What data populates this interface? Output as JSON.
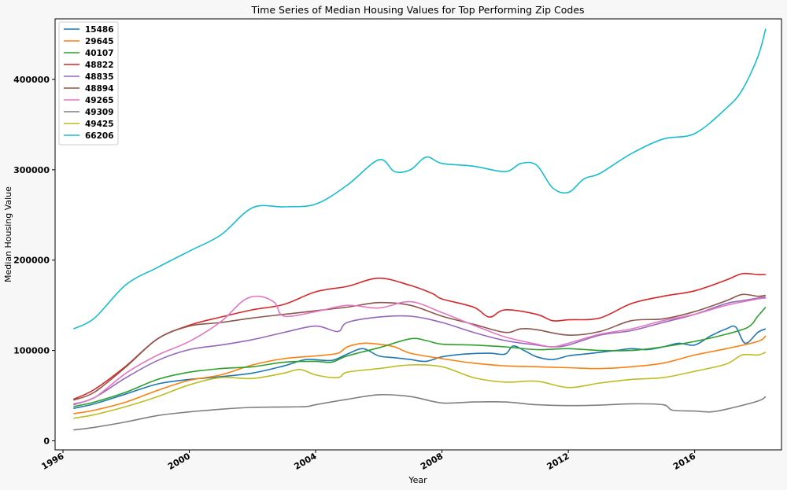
{
  "chart_data": {
    "type": "line",
    "title": "Time Series of Median Housing Values for Top Performing Zip Codes",
    "xlabel": "Year",
    "ylabel": "Median Housing Value",
    "xlim": [
      1995.75,
      2018.75
    ],
    "ylim": [
      -10000,
      467000
    ],
    "x_ticks": [
      1996,
      2000,
      2004,
      2008,
      2012,
      2016
    ],
    "y_ticks": [
      0,
      100000,
      200000,
      300000,
      400000
    ],
    "legend": "top-left",
    "grid": false,
    "series": [
      {
        "name": "15486",
        "color": "#1f77b4",
        "points": [
          [
            1996.33,
            36000
          ],
          [
            1997,
            41000
          ],
          [
            1998,
            52000
          ],
          [
            1999,
            63000
          ],
          [
            2000,
            68000
          ],
          [
            2001,
            71000
          ],
          [
            2002,
            75000
          ],
          [
            2003,
            83000
          ],
          [
            2003.7,
            90000
          ],
          [
            2004.5,
            89000
          ],
          [
            2005,
            96000
          ],
          [
            2005.5,
            102000
          ],
          [
            2006,
            94000
          ],
          [
            2006.5,
            92000
          ],
          [
            2007,
            90000
          ],
          [
            2007.5,
            88000
          ],
          [
            2008,
            93000
          ],
          [
            2008.7,
            96000
          ],
          [
            2009.5,
            97000
          ],
          [
            2010,
            96000
          ],
          [
            2010.25,
            105000
          ],
          [
            2010.6,
            100000
          ],
          [
            2011,
            93000
          ],
          [
            2011.5,
            90000
          ],
          [
            2012,
            94000
          ],
          [
            2012.5,
            96000
          ],
          [
            2013,
            98000
          ],
          [
            2013.5,
            100000
          ],
          [
            2014,
            102000
          ],
          [
            2014.5,
            101000
          ],
          [
            2015,
            104000
          ],
          [
            2015.5,
            108000
          ],
          [
            2016,
            106000
          ],
          [
            2016.5,
            116000
          ],
          [
            2017,
            124000
          ],
          [
            2017.3,
            126000
          ],
          [
            2017.6,
            108000
          ],
          [
            2018,
            120000
          ],
          [
            2018.25,
            124000
          ]
        ]
      },
      {
        "name": "29645",
        "color": "#ff7f0e",
        "points": [
          [
            1996.33,
            30000
          ],
          [
            1997,
            34000
          ],
          [
            1998,
            43000
          ],
          [
            1999,
            56000
          ],
          [
            2000,
            67000
          ],
          [
            2001,
            73000
          ],
          [
            2002,
            84000
          ],
          [
            2003,
            91000
          ],
          [
            2004,
            94000
          ],
          [
            2004.7,
            97000
          ],
          [
            2005,
            104000
          ],
          [
            2005.5,
            108000
          ],
          [
            2006,
            107000
          ],
          [
            2006.5,
            104000
          ],
          [
            2007,
            97000
          ],
          [
            2008,
            91000
          ],
          [
            2009,
            86000
          ],
          [
            2010,
            83000
          ],
          [
            2011,
            82000
          ],
          [
            2012,
            81000
          ],
          [
            2013,
            80000
          ],
          [
            2014,
            82000
          ],
          [
            2015,
            86000
          ],
          [
            2016,
            95000
          ],
          [
            2017,
            102000
          ],
          [
            2018,
            110000
          ],
          [
            2018.25,
            116000
          ]
        ]
      },
      {
        "name": "40107",
        "color": "#2ca02c",
        "points": [
          [
            1996.33,
            38000
          ],
          [
            1997,
            43000
          ],
          [
            1998,
            54000
          ],
          [
            1999,
            68000
          ],
          [
            2000,
            76000
          ],
          [
            2001,
            80000
          ],
          [
            2002,
            82000
          ],
          [
            2003,
            87000
          ],
          [
            2004,
            88000
          ],
          [
            2004.5,
            87000
          ],
          [
            2005,
            94000
          ],
          [
            2006,
            103000
          ],
          [
            2007,
            113000
          ],
          [
            2007.5,
            111000
          ],
          [
            2008,
            107000
          ],
          [
            2009,
            106000
          ],
          [
            2010,
            104000
          ],
          [
            2011,
            101000
          ],
          [
            2012,
            102000
          ],
          [
            2013,
            100000
          ],
          [
            2014,
            100000
          ],
          [
            2015,
            104000
          ],
          [
            2016,
            110000
          ],
          [
            2017,
            118000
          ],
          [
            2017.7,
            126000
          ],
          [
            2018,
            138000
          ],
          [
            2018.25,
            148000
          ]
        ]
      },
      {
        "name": "48822",
        "color": "#d62728",
        "points": [
          [
            1996.33,
            46000
          ],
          [
            1997,
            57000
          ],
          [
            1998,
            83000
          ],
          [
            1999,
            113000
          ],
          [
            2000,
            128000
          ],
          [
            2001,
            137000
          ],
          [
            2002,
            145000
          ],
          [
            2003,
            151000
          ],
          [
            2004,
            165000
          ],
          [
            2005,
            171000
          ],
          [
            2006,
            180000
          ],
          [
            2007,
            172000
          ],
          [
            2007.7,
            163000
          ],
          [
            2008,
            157000
          ],
          [
            2009,
            148000
          ],
          [
            2009.5,
            137000
          ],
          [
            2010,
            145000
          ],
          [
            2011,
            140000
          ],
          [
            2011.5,
            133000
          ],
          [
            2012,
            134000
          ],
          [
            2013,
            136000
          ],
          [
            2014,
            152000
          ],
          [
            2015,
            160000
          ],
          [
            2016,
            166000
          ],
          [
            2017,
            178000
          ],
          [
            2017.5,
            185000
          ],
          [
            2018,
            184000
          ],
          [
            2018.25,
            184000
          ]
        ]
      },
      {
        "name": "48835",
        "color": "#9467bd",
        "points": [
          [
            1996.33,
            40000
          ],
          [
            1997,
            48000
          ],
          [
            1998,
            70000
          ],
          [
            1999,
            89000
          ],
          [
            2000,
            101000
          ],
          [
            2001,
            106000
          ],
          [
            2002,
            112000
          ],
          [
            2003,
            120000
          ],
          [
            2004,
            127000
          ],
          [
            2004.7,
            121000
          ],
          [
            2005,
            131000
          ],
          [
            2006,
            137000
          ],
          [
            2007,
            138000
          ],
          [
            2008,
            131000
          ],
          [
            2009,
            120000
          ],
          [
            2010,
            111000
          ],
          [
            2011,
            106000
          ],
          [
            2011.5,
            104000
          ],
          [
            2012,
            106000
          ],
          [
            2013,
            117000
          ],
          [
            2014,
            122000
          ],
          [
            2015,
            131000
          ],
          [
            2016,
            140000
          ],
          [
            2017,
            152000
          ],
          [
            2017.5,
            155000
          ],
          [
            2018,
            158000
          ],
          [
            2018.25,
            159000
          ]
        ]
      },
      {
        "name": "48894",
        "color": "#8c564b",
        "points": [
          [
            1996.33,
            45000
          ],
          [
            1997,
            54000
          ],
          [
            1998,
            82000
          ],
          [
            1999,
            113000
          ],
          [
            2000,
            127000
          ],
          [
            2001,
            131000
          ],
          [
            2002,
            136000
          ],
          [
            2003,
            140000
          ],
          [
            2004,
            144000
          ],
          [
            2005,
            148000
          ],
          [
            2006,
            153000
          ],
          [
            2007,
            150000
          ],
          [
            2008,
            138000
          ],
          [
            2009,
            129000
          ],
          [
            2010,
            120000
          ],
          [
            2010.5,
            124000
          ],
          [
            2011,
            123000
          ],
          [
            2012,
            117000
          ],
          [
            2013,
            121000
          ],
          [
            2014,
            133000
          ],
          [
            2015,
            135000
          ],
          [
            2016,
            143000
          ],
          [
            2017,
            155000
          ],
          [
            2017.5,
            162000
          ],
          [
            2018,
            160000
          ],
          [
            2018.25,
            161000
          ]
        ]
      },
      {
        "name": "49265",
        "color": "#e377c2",
        "points": [
          [
            1996.33,
            41000
          ],
          [
            1997,
            48000
          ],
          [
            1998,
            75000
          ],
          [
            1999,
            95000
          ],
          [
            2000,
            110000
          ],
          [
            2001,
            132000
          ],
          [
            2001.7,
            155000
          ],
          [
            2002.2,
            160000
          ],
          [
            2002.7,
            153000
          ],
          [
            2003,
            138000
          ],
          [
            2004,
            143000
          ],
          [
            2005,
            150000
          ],
          [
            2006,
            147000
          ],
          [
            2007,
            154000
          ],
          [
            2008,
            142000
          ],
          [
            2009,
            128000
          ],
          [
            2010,
            115000
          ],
          [
            2011,
            107000
          ],
          [
            2011.5,
            104000
          ],
          [
            2012,
            108000
          ],
          [
            2013,
            118000
          ],
          [
            2014,
            124000
          ],
          [
            2015,
            133000
          ],
          [
            2016,
            140000
          ],
          [
            2017,
            150000
          ],
          [
            2018,
            157000
          ],
          [
            2018.25,
            158000
          ]
        ]
      },
      {
        "name": "49309",
        "color": "#7f7f7f",
        "points": [
          [
            1996.33,
            12000
          ],
          [
            1997,
            15000
          ],
          [
            1998,
            21000
          ],
          [
            1999,
            28000
          ],
          [
            2000,
            32000
          ],
          [
            2001,
            35000
          ],
          [
            2002,
            37000
          ],
          [
            2003,
            37500
          ],
          [
            2003.7,
            38000
          ],
          [
            2004,
            40000
          ],
          [
            2005,
            46000
          ],
          [
            2006,
            51000
          ],
          [
            2007,
            49000
          ],
          [
            2008,
            42000
          ],
          [
            2009,
            43000
          ],
          [
            2010,
            43000
          ],
          [
            2011,
            40000
          ],
          [
            2012,
            39000
          ],
          [
            2013,
            39500
          ],
          [
            2014,
            41000
          ],
          [
            2015,
            40000
          ],
          [
            2015.3,
            34000
          ],
          [
            2016,
            33000
          ],
          [
            2016.5,
            32000
          ],
          [
            2017,
            35000
          ],
          [
            2018,
            44000
          ],
          [
            2018.25,
            49000
          ]
        ]
      },
      {
        "name": "49425",
        "color": "#bcbd22",
        "points": [
          [
            1996.33,
            25000
          ],
          [
            1997,
            29000
          ],
          [
            1998,
            38000
          ],
          [
            1999,
            49000
          ],
          [
            2000,
            62000
          ],
          [
            2001,
            70000
          ],
          [
            2002,
            69000
          ],
          [
            2003,
            75000
          ],
          [
            2003.5,
            79000
          ],
          [
            2004,
            73000
          ],
          [
            2004.7,
            70000
          ],
          [
            2005,
            76000
          ],
          [
            2006,
            80000
          ],
          [
            2007,
            84000
          ],
          [
            2008,
            82000
          ],
          [
            2009,
            70000
          ],
          [
            2010,
            65000
          ],
          [
            2011,
            66000
          ],
          [
            2012,
            59000
          ],
          [
            2013,
            64000
          ],
          [
            2014,
            68000
          ],
          [
            2015,
            70000
          ],
          [
            2016,
            77000
          ],
          [
            2017,
            85000
          ],
          [
            2017.5,
            95000
          ],
          [
            2018,
            95000
          ],
          [
            2018.25,
            98000
          ]
        ]
      },
      {
        "name": "66206",
        "color": "#17becf",
        "points": [
          [
            1996.33,
            124000
          ],
          [
            1997,
            136000
          ],
          [
            1998,
            173000
          ],
          [
            1999,
            192000
          ],
          [
            2000,
            210000
          ],
          [
            2001,
            228000
          ],
          [
            2002,
            258000
          ],
          [
            2003,
            259000
          ],
          [
            2004,
            262000
          ],
          [
            2005,
            283000
          ],
          [
            2006,
            311000
          ],
          [
            2006.5,
            298000
          ],
          [
            2007,
            300000
          ],
          [
            2007.5,
            314000
          ],
          [
            2008,
            307000
          ],
          [
            2009,
            304000
          ],
          [
            2010,
            298000
          ],
          [
            2010.5,
            307000
          ],
          [
            2011,
            305000
          ],
          [
            2011.5,
            280000
          ],
          [
            2012,
            275000
          ],
          [
            2012.5,
            290000
          ],
          [
            2013,
            296000
          ],
          [
            2014,
            318000
          ],
          [
            2015,
            334000
          ],
          [
            2016,
            340000
          ],
          [
            2017,
            368000
          ],
          [
            2017.5,
            388000
          ],
          [
            2018,
            425000
          ],
          [
            2018.25,
            456000
          ]
        ]
      }
    ]
  }
}
